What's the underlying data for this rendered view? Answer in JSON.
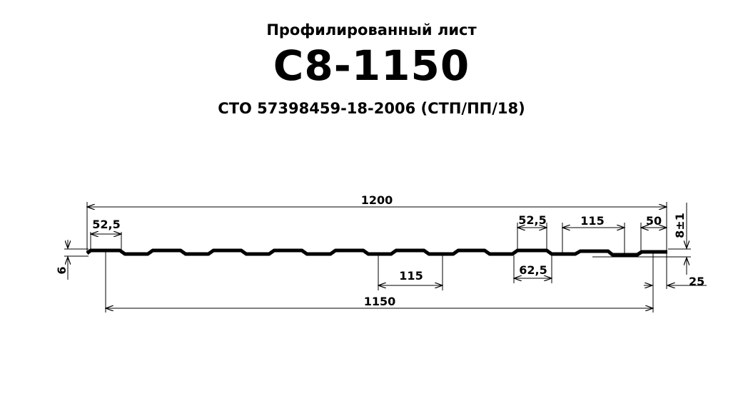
{
  "title": {
    "subtitle": "Профилированный  лист",
    "model": "С8-1150",
    "standard": "СТО  57398459-18-2006  (СТП/ПП/18)"
  },
  "dimensions": {
    "total_width": "1200",
    "useful_width": "1150",
    "left_top_shelf": "52,5",
    "rib_top": "52,5",
    "pitch_top": "115",
    "end_shelf": "50",
    "pitch_bottom": "115",
    "rib_bottom": "62,5",
    "height": "8±1",
    "thickness_left": "6",
    "edge_offset": "25"
  }
}
